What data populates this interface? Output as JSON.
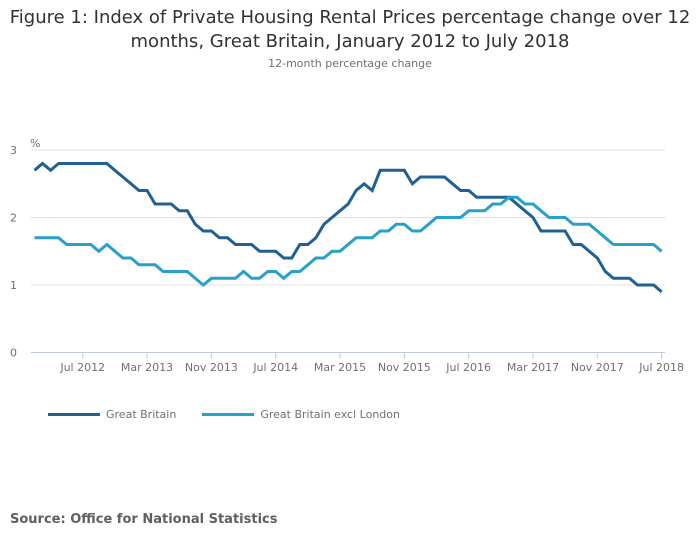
{
  "title": "Figure 1: Index of Private Housing Rental Prices percentage change over 12 months, Great Britain, January 2012 to July 2018",
  "subtitle": "12-month percentage change",
  "source": "Source: Office for National Statistics",
  "colors": {
    "great_britain": "#206095",
    "great_britain_excl_london": "#27a0cc",
    "grid": "#e0e0e0",
    "axis": "#bec8d9",
    "text": "#707071"
  },
  "chart_data": {
    "type": "line",
    "title": "Figure 1: Index of Private Housing Rental Prices percentage change over 12 months, Great Britain, January 2012 to July 2018",
    "subtitle": "12-month percentage change",
    "xlabel": "",
    "ylabel": "%",
    "ylim": [
      0,
      3
    ],
    "yticks": [
      0,
      1,
      2,
      3
    ],
    "grid": true,
    "legend": "bottom-left",
    "x": [
      "Jan 2012",
      "Feb 2012",
      "Mar 2012",
      "Apr 2012",
      "May 2012",
      "Jun 2012",
      "Jul 2012",
      "Aug 2012",
      "Sep 2012",
      "Oct 2012",
      "Nov 2012",
      "Dec 2012",
      "Jan 2013",
      "Feb 2013",
      "Mar 2013",
      "Apr 2013",
      "May 2013",
      "Jun 2013",
      "Jul 2013",
      "Aug 2013",
      "Sep 2013",
      "Oct 2013",
      "Nov 2013",
      "Dec 2013",
      "Jan 2014",
      "Feb 2014",
      "Mar 2014",
      "Apr 2014",
      "May 2014",
      "Jun 2014",
      "Jul 2014",
      "Aug 2014",
      "Sep 2014",
      "Oct 2014",
      "Nov 2014",
      "Dec 2014",
      "Jan 2015",
      "Feb 2015",
      "Mar 2015",
      "Apr 2015",
      "May 2015",
      "Jun 2015",
      "Jul 2015",
      "Aug 2015",
      "Sep 2015",
      "Oct 2015",
      "Nov 2015",
      "Dec 2015",
      "Jan 2016",
      "Feb 2016",
      "Mar 2016",
      "Apr 2016",
      "May 2016",
      "Jun 2016",
      "Jul 2016",
      "Aug 2016",
      "Sep 2016",
      "Oct 2016",
      "Nov 2016",
      "Dec 2016",
      "Jan 2017",
      "Feb 2017",
      "Mar 2017",
      "Apr 2017",
      "May 2017",
      "Jun 2017",
      "Jul 2017",
      "Aug 2017",
      "Sep 2017",
      "Oct 2017",
      "Nov 2017",
      "Dec 2017",
      "Jan 2018",
      "Feb 2018",
      "Mar 2018",
      "Apr 2018",
      "May 2018",
      "Jun 2018",
      "Jul 2018"
    ],
    "xtick_labels": [
      "Jul 2012",
      "Mar 2013",
      "Nov 2013",
      "Jul 2014",
      "Mar 2015",
      "Nov 2015",
      "Jul 2016",
      "Mar 2017",
      "Nov 2017",
      "Jul 2018"
    ],
    "series": [
      {
        "name": "Great Britain",
        "color": "#206095",
        "values": [
          2.7,
          2.8,
          2.7,
          2.8,
          2.8,
          2.8,
          2.8,
          2.8,
          2.8,
          2.8,
          2.7,
          2.6,
          2.5,
          2.4,
          2.4,
          2.2,
          2.2,
          2.2,
          2.1,
          2.1,
          1.9,
          1.8,
          1.8,
          1.7,
          1.7,
          1.6,
          1.6,
          1.6,
          1.5,
          1.5,
          1.5,
          1.4,
          1.4,
          1.6,
          1.6,
          1.7,
          1.9,
          2.0,
          2.1,
          2.2,
          2.4,
          2.5,
          2.4,
          2.7,
          2.7,
          2.7,
          2.7,
          2.5,
          2.6,
          2.6,
          2.6,
          2.6,
          2.5,
          2.4,
          2.4,
          2.3,
          2.3,
          2.3,
          2.3,
          2.3,
          2.2,
          2.1,
          2.0,
          1.8,
          1.8,
          1.8,
          1.8,
          1.6,
          1.6,
          1.5,
          1.4,
          1.2,
          1.1,
          1.1,
          1.1,
          1.0,
          1.0,
          1.0,
          0.9
        ]
      },
      {
        "name": "Great Britain excl London",
        "color": "#27a0cc",
        "values": [
          1.7,
          1.7,
          1.7,
          1.7,
          1.6,
          1.6,
          1.6,
          1.6,
          1.5,
          1.6,
          1.5,
          1.4,
          1.4,
          1.3,
          1.3,
          1.3,
          1.2,
          1.2,
          1.2,
          1.2,
          1.1,
          1.0,
          1.1,
          1.1,
          1.1,
          1.1,
          1.2,
          1.1,
          1.1,
          1.2,
          1.2,
          1.1,
          1.2,
          1.2,
          1.3,
          1.4,
          1.4,
          1.5,
          1.5,
          1.6,
          1.7,
          1.7,
          1.7,
          1.8,
          1.8,
          1.9,
          1.9,
          1.8,
          1.8,
          1.9,
          2.0,
          2.0,
          2.0,
          2.0,
          2.1,
          2.1,
          2.1,
          2.2,
          2.2,
          2.3,
          2.3,
          2.2,
          2.2,
          2.1,
          2.0,
          2.0,
          2.0,
          1.9,
          1.9,
          1.9,
          1.8,
          1.7,
          1.6,
          1.6,
          1.6,
          1.6,
          1.6,
          1.6,
          1.5
        ]
      }
    ]
  },
  "legend": {
    "items": [
      {
        "label": "Great Britain",
        "color": "#206095"
      },
      {
        "label": "Great Britain excl London",
        "color": "#27a0cc"
      }
    ]
  }
}
